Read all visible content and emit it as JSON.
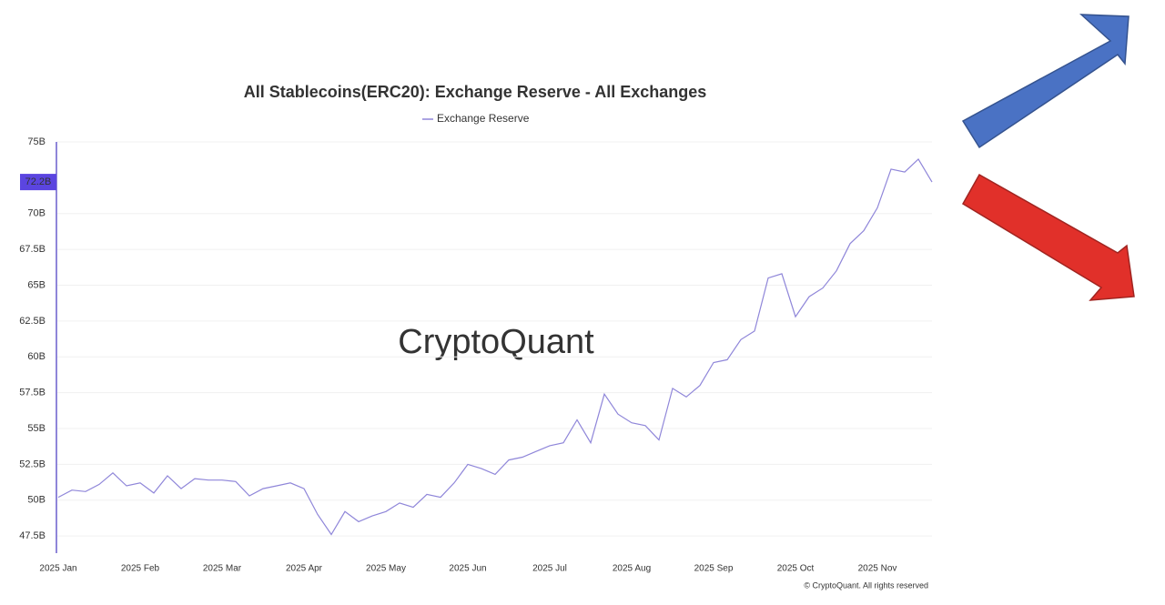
{
  "chart_data": {
    "type": "line",
    "title": "All Stablecoins(ERC20): Exchange Reserve - All Exchanges",
    "watermark": "CryptoQuant",
    "copyright": "© CryptoQuant. All rights reserved",
    "categories": [
      "2025 Jan",
      null,
      null,
      null,
      null,
      null,
      "2025 Feb",
      null,
      null,
      null,
      null,
      null,
      "2025 Mar",
      null,
      null,
      null,
      null,
      null,
      "2025 Apr",
      null,
      null,
      null,
      null,
      null,
      "2025 May",
      null,
      null,
      null,
      null,
      null,
      "2025 Jun",
      null,
      null,
      null,
      null,
      null,
      "2025 Jul",
      null,
      null,
      null,
      null,
      null,
      "2025 Aug",
      null,
      null,
      null,
      null,
      null,
      "2025 Sep",
      null,
      null,
      null,
      null,
      null,
      "2025 Oct",
      null,
      null,
      null,
      null,
      null,
      "2025 Nov",
      null,
      null,
      null,
      null
    ],
    "series": [
      {
        "name": "Exchange Reserve",
        "color": "#8f86d9",
        "values": [
          50.2,
          50.7,
          50.6,
          51.1,
          51.9,
          51.0,
          51.2,
          50.5,
          51.7,
          50.8,
          51.5,
          51.4,
          51.4,
          51.3,
          50.3,
          50.8,
          51.0,
          51.2,
          50.8,
          49.0,
          47.6,
          49.2,
          48.5,
          48.9,
          49.2,
          49.8,
          49.5,
          50.4,
          50.2,
          51.2,
          52.5,
          52.2,
          51.8,
          52.8,
          53.0,
          53.4,
          53.8,
          54.0,
          55.6,
          54.0,
          57.4,
          56.0,
          55.4,
          55.2,
          54.2,
          57.8,
          57.2,
          58.0,
          59.6,
          59.8,
          61.2,
          61.8,
          65.5,
          65.8,
          62.8,
          64.2,
          64.8,
          66.0,
          67.9,
          68.8,
          70.4,
          73.1,
          72.9,
          73.8,
          72.2
        ]
      }
    ],
    "current_marker": {
      "value": 72.2,
      "label": "72.2B"
    },
    "ylim": [
      46.3,
      75
    ],
    "yticks": [
      {
        "value": 47.5,
        "label": "47.5B"
      },
      {
        "value": 50,
        "label": "50B"
      },
      {
        "value": 52.5,
        "label": "52.5B"
      },
      {
        "value": 55,
        "label": "55B"
      },
      {
        "value": 57.5,
        "label": "57.5B"
      },
      {
        "value": 60,
        "label": "60B"
      },
      {
        "value": 62.5,
        "label": "62.5B"
      },
      {
        "value": 65,
        "label": "65B"
      },
      {
        "value": 67.5,
        "label": "67.5B"
      },
      {
        "value": 70,
        "label": "70B"
      },
      {
        "value": 75,
        "label": "75B"
      }
    ],
    "grid": true
  }
}
